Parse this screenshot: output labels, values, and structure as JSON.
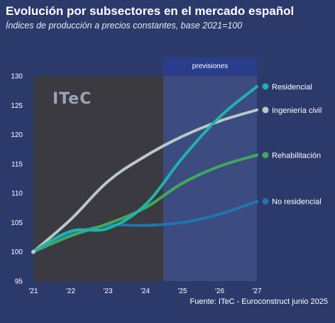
{
  "title": "Evolución por subsectores en el mercado español",
  "subtitle": "Índices de producción a precios constantes, base 2021=100",
  "source": "Fuente: ITeC - Euroconstruct junio 2025",
  "logo": "ITeC",
  "forecast_label": "previsiones",
  "colors": {
    "background": "#2b3a6b",
    "historical_panel": "#3a3a40",
    "forecast_panel": "#3c4b80",
    "forecast_header": "#2a3c8c"
  },
  "chart_data": {
    "type": "line",
    "x": [
      "'21",
      "'22",
      "'23",
      "'24",
      "'25",
      "'26",
      "'27"
    ],
    "ylim": [
      95,
      130
    ],
    "yticks": [
      95,
      100,
      105,
      110,
      115,
      120,
      125,
      130
    ],
    "grid": false,
    "forecast_from": "'25",
    "series": [
      {
        "name": "Residencial",
        "color": "#1fb3ad",
        "values": [
          100,
          103.5,
          104,
          108,
          116,
          123,
          128.2
        ]
      },
      {
        "name": "Ingeniería civil",
        "color": "#b8c8c8",
        "values": [
          100,
          105.5,
          112,
          116.3,
          119.7,
          122.3,
          124.2
        ]
      },
      {
        "name": "Rehabilitación",
        "color": "#3eaa58",
        "values": [
          100,
          102.7,
          104.8,
          107.5,
          111.7,
          114.6,
          116.5
        ]
      },
      {
        "name": "No residencial",
        "color": "#1f75b0",
        "values": [
          100,
          103,
          104.5,
          104.5,
          105,
          106.4,
          108.6
        ]
      }
    ]
  }
}
